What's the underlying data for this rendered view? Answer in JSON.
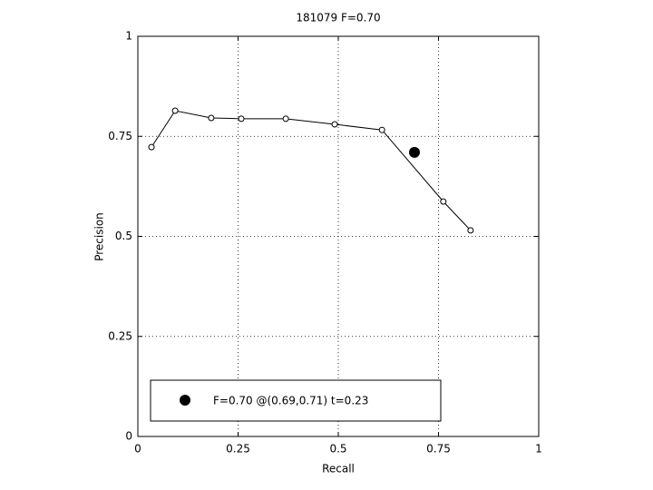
{
  "chart_data": {
    "type": "line",
    "title": "181079 F=0.70",
    "x_label": "Recall",
    "y_label": "Precision",
    "x": [
      0.034,
      0.093,
      0.183,
      0.258,
      0.369,
      0.491,
      0.609,
      0.762,
      0.83
    ],
    "values": [
      0.723,
      0.814,
      0.796,
      0.794,
      0.794,
      0.78,
      0.766,
      0.587,
      0.515
    ],
    "color": "#000000",
    "best_point": {
      "x": 0.69,
      "y": 0.71,
      "label": "F=0.70 @(0.69,0.71) t=0.23"
    },
    "xlim": [
      0,
      1
    ],
    "ylim": [
      0,
      1
    ],
    "xticks": [
      0,
      0.25,
      0.5,
      0.75,
      1
    ],
    "yticks": [
      0,
      0.25,
      0.5,
      0.75,
      1
    ],
    "grid": true
  }
}
